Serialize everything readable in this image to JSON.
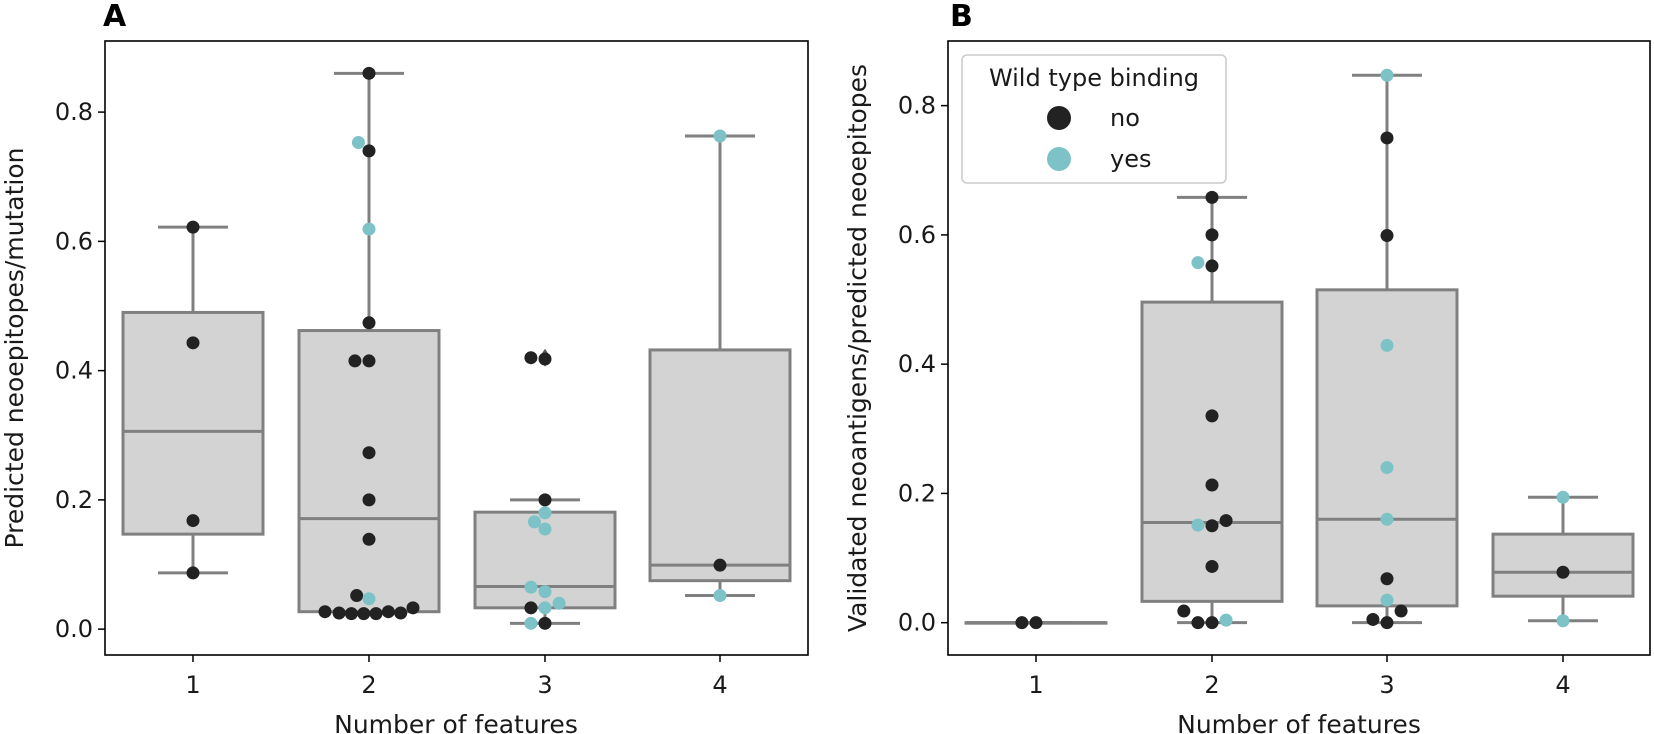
{
  "colors": {
    "no": "#222222",
    "yes": "#7cc2c7",
    "box_fill": "#d3d3d3",
    "box_edge": "#808080"
  },
  "chart_data": [
    {
      "type": "box",
      "panel": "A",
      "xlabel": "Number of features",
      "ylabel": "Predicted neoepitopes/mutation",
      "categories": [
        "1",
        "2",
        "3",
        "4"
      ],
      "ylim": [
        -0.04,
        0.91
      ],
      "yticks": [
        0.0,
        0.2,
        0.4,
        0.6,
        0.8
      ],
      "ytick_labels": [
        "0.0",
        "0.2",
        "0.4",
        "0.6",
        "0.8"
      ],
      "boxes": [
        {
          "q1": 0.147,
          "median": 0.306,
          "q3": 0.49,
          "whisker_low": 0.087,
          "whisker_high": 0.622
        },
        {
          "q1": 0.027,
          "median": 0.171,
          "q3": 0.462,
          "whisker_low": 0.027,
          "whisker_high": 0.86
        },
        {
          "q1": 0.033,
          "median": 0.066,
          "q3": 0.181,
          "whisker_low": 0.009,
          "whisker_high": 0.2,
          "outliers": [
            0.42
          ]
        },
        {
          "q1": 0.075,
          "median": 0.099,
          "q3": 0.432,
          "whisker_low": 0.052,
          "whisker_high": 0.763
        }
      ],
      "points": [
        {
          "cat": 0,
          "dx": 0,
          "y": 0.622,
          "wt": "no"
        },
        {
          "cat": 0,
          "dx": 0,
          "y": 0.443,
          "wt": "no"
        },
        {
          "cat": 0,
          "dx": 0,
          "y": 0.168,
          "wt": "no"
        },
        {
          "cat": 0,
          "dx": 0,
          "y": 0.087,
          "wt": "no"
        },
        {
          "cat": 1,
          "dx": 0,
          "y": 0.86,
          "wt": "no"
        },
        {
          "cat": 1,
          "dx": -0.06,
          "y": 0.753,
          "wt": "yes"
        },
        {
          "cat": 1,
          "dx": 0,
          "y": 0.74,
          "wt": "no"
        },
        {
          "cat": 1,
          "dx": 0,
          "y": 0.619,
          "wt": "yes"
        },
        {
          "cat": 1,
          "dx": 0,
          "y": 0.474,
          "wt": "no"
        },
        {
          "cat": 1,
          "dx": -0.08,
          "y": 0.415,
          "wt": "no"
        },
        {
          "cat": 1,
          "dx": 0,
          "y": 0.415,
          "wt": "no"
        },
        {
          "cat": 1,
          "dx": 0,
          "y": 0.273,
          "wt": "no"
        },
        {
          "cat": 1,
          "dx": 0,
          "y": 0.2,
          "wt": "no"
        },
        {
          "cat": 1,
          "dx": 0,
          "y": 0.139,
          "wt": "no"
        },
        {
          "cat": 1,
          "dx": -0.07,
          "y": 0.052,
          "wt": "no"
        },
        {
          "cat": 1,
          "dx": 0,
          "y": 0.047,
          "wt": "yes"
        },
        {
          "cat": 1,
          "dx": -0.25,
          "y": 0.027,
          "wt": "no"
        },
        {
          "cat": 1,
          "dx": -0.17,
          "y": 0.025,
          "wt": "no"
        },
        {
          "cat": 1,
          "dx": -0.1,
          "y": 0.024,
          "wt": "no"
        },
        {
          "cat": 1,
          "dx": -0.03,
          "y": 0.024,
          "wt": "no"
        },
        {
          "cat": 1,
          "dx": 0.04,
          "y": 0.024,
          "wt": "no"
        },
        {
          "cat": 1,
          "dx": 0.11,
          "y": 0.027,
          "wt": "no"
        },
        {
          "cat": 1,
          "dx": 0.18,
          "y": 0.025,
          "wt": "no"
        },
        {
          "cat": 1,
          "dx": 0.25,
          "y": 0.033,
          "wt": "no"
        },
        {
          "cat": 2,
          "dx": -0.08,
          "y": 0.42,
          "wt": "no"
        },
        {
          "cat": 2,
          "dx": 0,
          "y": 0.418,
          "wt": "no"
        },
        {
          "cat": 2,
          "dx": 0,
          "y": 0.2,
          "wt": "no"
        },
        {
          "cat": 2,
          "dx": 0,
          "y": 0.18,
          "wt": "yes"
        },
        {
          "cat": 2,
          "dx": -0.06,
          "y": 0.166,
          "wt": "yes"
        },
        {
          "cat": 2,
          "dx": 0,
          "y": 0.155,
          "wt": "yes"
        },
        {
          "cat": 2,
          "dx": -0.08,
          "y": 0.065,
          "wt": "yes"
        },
        {
          "cat": 2,
          "dx": 0,
          "y": 0.058,
          "wt": "yes"
        },
        {
          "cat": 2,
          "dx": 0.08,
          "y": 0.04,
          "wt": "yes"
        },
        {
          "cat": 2,
          "dx": -0.08,
          "y": 0.033,
          "wt": "no"
        },
        {
          "cat": 2,
          "dx": 0,
          "y": 0.033,
          "wt": "yes"
        },
        {
          "cat": 2,
          "dx": -0.08,
          "y": 0.009,
          "wt": "yes"
        },
        {
          "cat": 2,
          "dx": 0,
          "y": 0.009,
          "wt": "no"
        },
        {
          "cat": 3,
          "dx": 0,
          "y": 0.763,
          "wt": "yes"
        },
        {
          "cat": 3,
          "dx": 0,
          "y": 0.099,
          "wt": "no"
        },
        {
          "cat": 3,
          "dx": 0,
          "y": 0.052,
          "wt": "yes"
        }
      ]
    },
    {
      "type": "box",
      "panel": "B",
      "xlabel": "Number of features",
      "ylabel": "Validated neoantigens/predicted neoepitopes",
      "categories": [
        "1",
        "2",
        "3",
        "4"
      ],
      "ylim": [
        -0.05,
        0.9
      ],
      "yticks": [
        0.0,
        0.2,
        0.4,
        0.6,
        0.8
      ],
      "ytick_labels": [
        "0.0",
        "0.2",
        "0.4",
        "0.6",
        "0.8"
      ],
      "legend": {
        "title": "Wild type binding",
        "entries": [
          "no",
          "yes"
        ],
        "loc": "upper-left"
      },
      "boxes": [
        {
          "q1": 0.0,
          "median": 0.0,
          "q3": 0.0,
          "whisker_low": 0.0,
          "whisker_high": 0.0
        },
        {
          "q1": 0.033,
          "median": 0.155,
          "q3": 0.496,
          "whisker_low": 0.0,
          "whisker_high": 0.658
        },
        {
          "q1": 0.026,
          "median": 0.16,
          "q3": 0.515,
          "whisker_low": 0.0,
          "whisker_high": 0.847
        },
        {
          "q1": 0.041,
          "median": 0.078,
          "q3": 0.137,
          "whisker_low": 0.003,
          "whisker_high": 0.194
        }
      ],
      "points": [
        {
          "cat": 0,
          "dx": -0.08,
          "y": 0.0,
          "wt": "no"
        },
        {
          "cat": 0,
          "dx": 0,
          "y": 0.0,
          "wt": "no"
        },
        {
          "cat": 1,
          "dx": 0,
          "y": 0.658,
          "wt": "no"
        },
        {
          "cat": 1,
          "dx": 0,
          "y": 0.6,
          "wt": "no"
        },
        {
          "cat": 1,
          "dx": -0.08,
          "y": 0.557,
          "wt": "yes"
        },
        {
          "cat": 1,
          "dx": 0,
          "y": 0.552,
          "wt": "no"
        },
        {
          "cat": 1,
          "dx": 0,
          "y": 0.32,
          "wt": "no"
        },
        {
          "cat": 1,
          "dx": 0,
          "y": 0.213,
          "wt": "no"
        },
        {
          "cat": 1,
          "dx": 0.08,
          "y": 0.158,
          "wt": "no"
        },
        {
          "cat": 1,
          "dx": -0.08,
          "y": 0.151,
          "wt": "yes"
        },
        {
          "cat": 1,
          "dx": 0,
          "y": 0.15,
          "wt": "no"
        },
        {
          "cat": 1,
          "dx": 0,
          "y": 0.087,
          "wt": "no"
        },
        {
          "cat": 1,
          "dx": -0.16,
          "y": 0.018,
          "wt": "no"
        },
        {
          "cat": 1,
          "dx": -0.08,
          "y": 0.0,
          "wt": "no"
        },
        {
          "cat": 1,
          "dx": 0,
          "y": 0.0,
          "wt": "no"
        },
        {
          "cat": 1,
          "dx": 0.08,
          "y": 0.004,
          "wt": "yes"
        },
        {
          "cat": 2,
          "dx": 0,
          "y": 0.847,
          "wt": "yes"
        },
        {
          "cat": 2,
          "dx": 0,
          "y": 0.75,
          "wt": "no"
        },
        {
          "cat": 2,
          "dx": 0,
          "y": 0.599,
          "wt": "no"
        },
        {
          "cat": 2,
          "dx": 0,
          "y": 0.429,
          "wt": "yes"
        },
        {
          "cat": 2,
          "dx": 0,
          "y": 0.24,
          "wt": "yes"
        },
        {
          "cat": 2,
          "dx": 0,
          "y": 0.16,
          "wt": "yes"
        },
        {
          "cat": 2,
          "dx": 0,
          "y": 0.068,
          "wt": "no"
        },
        {
          "cat": 2,
          "dx": 0,
          "y": 0.035,
          "wt": "yes"
        },
        {
          "cat": 2,
          "dx": 0.08,
          "y": 0.018,
          "wt": "no"
        },
        {
          "cat": 2,
          "dx": -0.08,
          "y": 0.005,
          "wt": "no"
        },
        {
          "cat": 2,
          "dx": 0,
          "y": 0.0,
          "wt": "no"
        },
        {
          "cat": 3,
          "dx": 0,
          "y": 0.194,
          "wt": "yes"
        },
        {
          "cat": 3,
          "dx": 0,
          "y": 0.078,
          "wt": "no"
        },
        {
          "cat": 3,
          "dx": 0,
          "y": 0.003,
          "wt": "yes"
        }
      ]
    }
  ]
}
